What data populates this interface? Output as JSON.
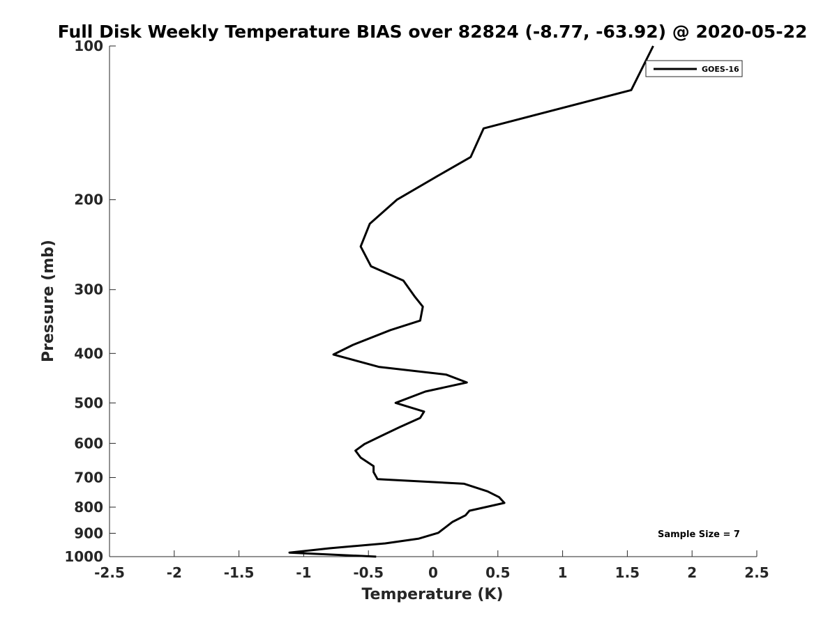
{
  "chart_data": {
    "type": "line",
    "title": "Full Disk Weekly Temperature BIAS over 82824 (-8.77, -63.92) @ 2020-05-22",
    "xlabel": "Temperature (K)",
    "ylabel": "Pressure (mb)",
    "xlim": [
      -2.5,
      2.5
    ],
    "ylim": [
      1000,
      100
    ],
    "y_scale": "log",
    "y_reversed": true,
    "xticks": [
      -2.5,
      -2,
      -1.5,
      -1,
      -0.5,
      0,
      0.5,
      1,
      1.5,
      2,
      2.5
    ],
    "xtick_labels": [
      "-2.5",
      "-2",
      "-1.5",
      "-1",
      "-0.5",
      "0",
      "0.5",
      "1",
      "1.5",
      "2",
      "2.5"
    ],
    "yticks": [
      100,
      200,
      300,
      400,
      500,
      600,
      700,
      800,
      900,
      1000
    ],
    "ytick_labels": [
      "100",
      "200",
      "300",
      "400",
      "500",
      "600",
      "700",
      "800",
      "900",
      "1000"
    ],
    "grid": false,
    "legend": {
      "position": "top-right",
      "entries": [
        "GOES-16"
      ]
    },
    "annotation": "Sample Size = 7",
    "series": [
      {
        "name": "GOES-16",
        "color": "#000000",
        "points": [
          {
            "x": 1.7,
            "y": 100
          },
          {
            "x": 1.53,
            "y": 122
          },
          {
            "x": 0.39,
            "y": 145
          },
          {
            "x": 0.29,
            "y": 165
          },
          {
            "x": 0.03,
            "y": 180
          },
          {
            "x": -0.28,
            "y": 200
          },
          {
            "x": -0.49,
            "y": 223
          },
          {
            "x": -0.56,
            "y": 247
          },
          {
            "x": -0.48,
            "y": 270
          },
          {
            "x": -0.23,
            "y": 288
          },
          {
            "x": -0.14,
            "y": 310
          },
          {
            "x": -0.08,
            "y": 324
          },
          {
            "x": -0.1,
            "y": 345
          },
          {
            "x": -0.33,
            "y": 360
          },
          {
            "x": -0.62,
            "y": 385
          },
          {
            "x": -0.77,
            "y": 402
          },
          {
            "x": -0.42,
            "y": 425
          },
          {
            "x": 0.1,
            "y": 440
          },
          {
            "x": 0.26,
            "y": 456
          },
          {
            "x": -0.06,
            "y": 475
          },
          {
            "x": -0.29,
            "y": 500
          },
          {
            "x": -0.07,
            "y": 520
          },
          {
            "x": -0.1,
            "y": 535
          },
          {
            "x": -0.26,
            "y": 558
          },
          {
            "x": -0.4,
            "y": 580
          },
          {
            "x": -0.53,
            "y": 602
          },
          {
            "x": -0.6,
            "y": 620
          },
          {
            "x": -0.56,
            "y": 640
          },
          {
            "x": -0.46,
            "y": 665
          },
          {
            "x": -0.46,
            "y": 683
          },
          {
            "x": -0.43,
            "y": 705
          },
          {
            "x": 0.24,
            "y": 720
          },
          {
            "x": 0.42,
            "y": 745
          },
          {
            "x": 0.51,
            "y": 765
          },
          {
            "x": 0.55,
            "y": 785
          },
          {
            "x": 0.28,
            "y": 813
          },
          {
            "x": 0.25,
            "y": 830
          },
          {
            "x": 0.15,
            "y": 855
          },
          {
            "x": 0.04,
            "y": 898
          },
          {
            "x": -0.11,
            "y": 922
          },
          {
            "x": -0.37,
            "y": 942
          },
          {
            "x": -0.8,
            "y": 963
          },
          {
            "x": -1.11,
            "y": 982
          },
          {
            "x": -0.44,
            "y": 1000
          }
        ]
      }
    ]
  }
}
